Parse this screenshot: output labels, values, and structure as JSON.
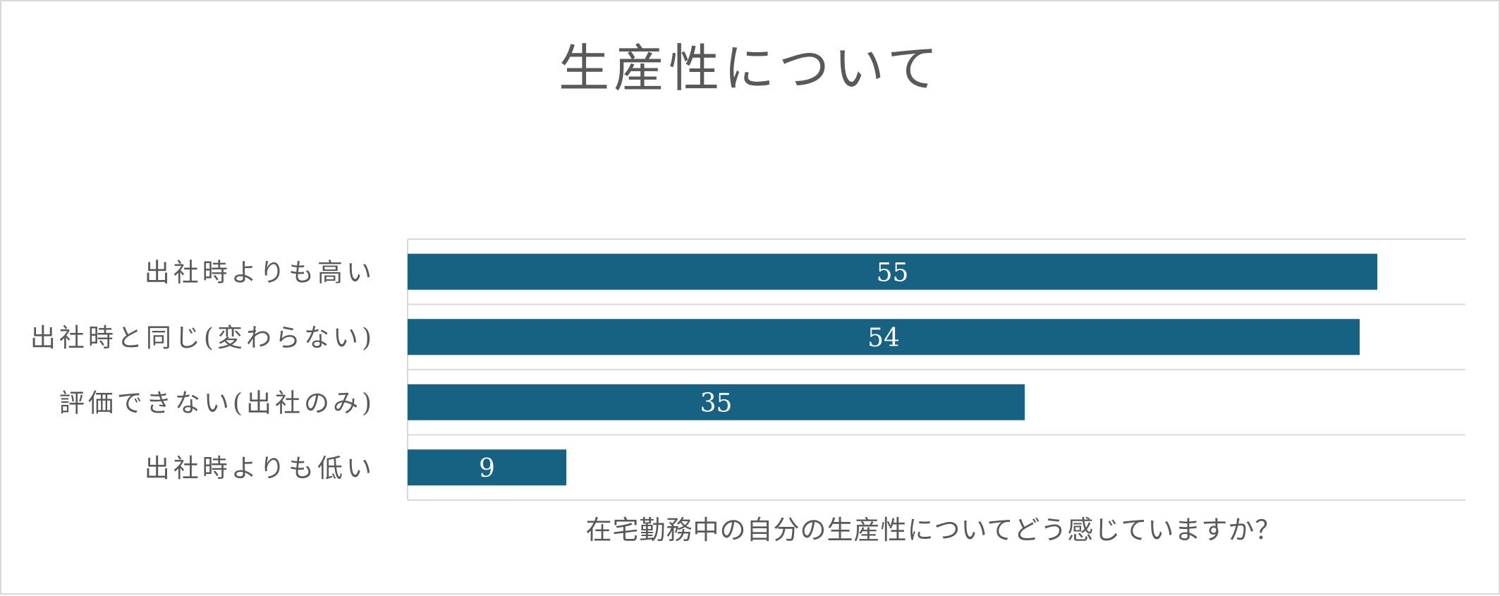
{
  "chart_data": {
    "type": "bar",
    "orientation": "horizontal",
    "title": "生産性について",
    "xlabel": "在宅勤務中の自分の生産性についてどう感じていますか？",
    "ylabel": "",
    "categories": [
      "出社時よりも高い",
      "出社時と同じ(変わらない)",
      "評価できない(出社のみ)",
      "出社時よりも低い"
    ],
    "values": [
      55,
      54,
      35,
      9
    ],
    "xlim": [
      0,
      60
    ],
    "data_labels": true,
    "gridlines": true,
    "legend": "none",
    "colors": {
      "bar": "#176183",
      "text": "#595959",
      "gridline": "#d9d9d9",
      "border": "#d9d9d9",
      "data_label": "#ffffff"
    }
  }
}
